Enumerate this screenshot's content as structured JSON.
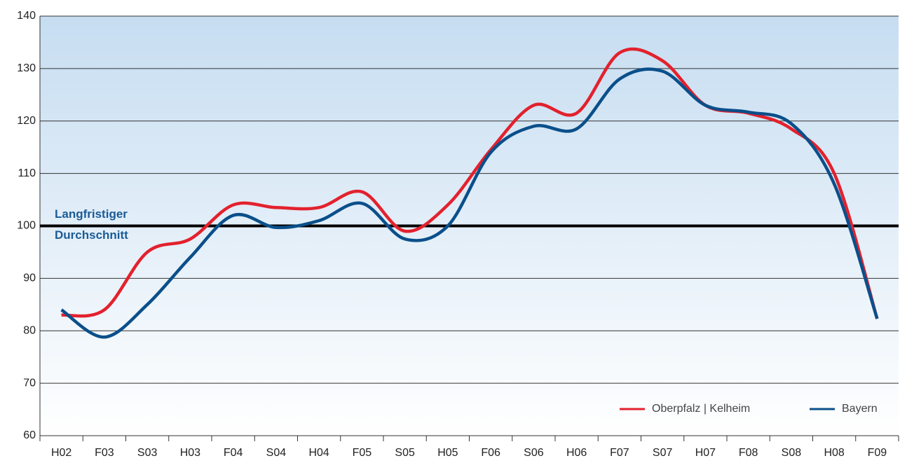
{
  "chart_data": {
    "type": "line",
    "categories": [
      "H02",
      "F03",
      "S03",
      "H03",
      "F04",
      "S04",
      "H04",
      "F05",
      "S05",
      "H05",
      "F06",
      "S06",
      "H06",
      "F07",
      "S07",
      "H07",
      "F08",
      "S08",
      "H08",
      "F09"
    ],
    "series": [
      {
        "name": "Oberpfalz | Kelheim",
        "color": "#e3212d",
        "values": [
          83,
          84,
          95,
          97.5,
          104,
          103.5,
          103.5,
          106.5,
          99,
          104,
          114.5,
          123,
          121.5,
          133,
          131.5,
          123,
          121.5,
          118.5,
          110,
          82.3
        ]
      },
      {
        "name": "Bayern",
        "color": "#0a4f8a",
        "values": [
          84,
          78.8,
          85,
          94,
          102,
          99.7,
          101,
          104.3,
          97.5,
          100,
          114,
          119,
          118.5,
          128,
          129.5,
          123,
          121.7,
          119.5,
          108,
          82.3
        ]
      }
    ],
    "ylim": [
      60,
      140
    ],
    "yticks": [
      60,
      70,
      80,
      90,
      100,
      110,
      120,
      130,
      140
    ],
    "grid": true,
    "legend": "lower right",
    "reference_line": 100,
    "annotation": [
      "Langfristiger",
      "Durchschnitt"
    ]
  }
}
